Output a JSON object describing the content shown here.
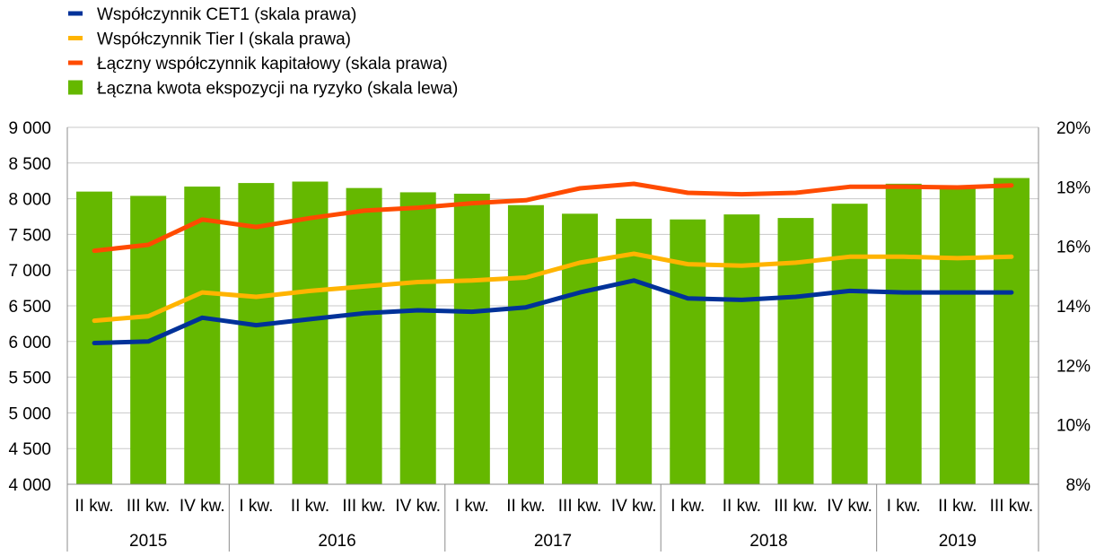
{
  "chart_data": {
    "type": "bar+line",
    "legend_placement": "top-left",
    "grid": true,
    "categories": [
      "II kw.",
      "III kw.",
      "IV kw.",
      "I kw.",
      "II kw.",
      "III kw.",
      "IV kw.",
      "I kw.",
      "II kw.",
      "III kw.",
      "IV kw.",
      "I kw.",
      "II kw.",
      "III kw.",
      "IV kw.",
      "I kw.",
      "II kw.",
      "III kw."
    ],
    "year_groups": [
      {
        "label": "2015",
        "count": 3
      },
      {
        "label": "2016",
        "count": 4
      },
      {
        "label": "2017",
        "count": 4
      },
      {
        "label": "2018",
        "count": 4
      },
      {
        "label": "2019",
        "count": 3
      }
    ],
    "y_left": {
      "min": 4000,
      "max": 9000,
      "ticks": [
        4000,
        4500,
        5000,
        5500,
        6000,
        6500,
        7000,
        7500,
        8000,
        8500,
        9000
      ],
      "tick_labels": [
        "4 000",
        "4 500",
        "5 000",
        "5 500",
        "6 000",
        "6 500",
        "7 000",
        "7 500",
        "8 000",
        "8 500",
        "9 000"
      ]
    },
    "y_right": {
      "min": 8,
      "max": 20,
      "ticks": [
        8,
        10,
        12,
        14,
        16,
        18,
        20
      ],
      "tick_labels": [
        "8%",
        "10%",
        "12%",
        "14%",
        "16%",
        "18%",
        "20%"
      ]
    },
    "bars": {
      "name": "Łączna kwota ekspozycji na ryzyko (skala lewa)",
      "color": "#65b800",
      "axis": "left",
      "values": [
        8100,
        8040,
        8170,
        8220,
        8240,
        8150,
        8090,
        8070,
        7910,
        7790,
        7720,
        7710,
        7780,
        7730,
        7930,
        8210,
        8160,
        8290
      ]
    },
    "lines": [
      {
        "name": "Łączny współczynnik kapitałowy (skala prawa)",
        "color": "#ff4b00",
        "axis": "right",
        "values": [
          15.85,
          16.05,
          16.9,
          16.65,
          16.95,
          17.2,
          17.3,
          17.45,
          17.55,
          17.95,
          18.1,
          17.8,
          17.75,
          17.8,
          18.0,
          18.0,
          17.98,
          18.05
        ]
      },
      {
        "name": "Współczynnik Tier I (skala prawa)",
        "color": "#ffb400",
        "axis": "right",
        "values": [
          13.5,
          13.65,
          14.45,
          14.3,
          14.5,
          14.65,
          14.8,
          14.85,
          14.95,
          15.45,
          15.75,
          15.4,
          15.35,
          15.45,
          15.65,
          15.65,
          15.6,
          15.65
        ]
      },
      {
        "name": "Współczynnik CET1 (skala prawa)",
        "color": "#003299",
        "axis": "right",
        "values": [
          12.75,
          12.8,
          13.6,
          13.35,
          13.55,
          13.75,
          13.85,
          13.8,
          13.95,
          14.45,
          14.85,
          14.25,
          14.2,
          14.3,
          14.5,
          14.45,
          14.45,
          14.45
        ]
      }
    ],
    "legend": [
      {
        "label": "Współczynnik CET1 (skala prawa)",
        "color": "#003299",
        "kind": "line"
      },
      {
        "label": "Współczynnik Tier I (skala prawa)",
        "color": "#ffb400",
        "kind": "line"
      },
      {
        "label": "Łączny współczynnik kapitałowy (skala prawa)",
        "color": "#ff4b00",
        "kind": "line"
      },
      {
        "label": "Łączna kwota ekspozycji na ryzyko (skala lewa)",
        "color": "#65b800",
        "kind": "bar"
      }
    ]
  }
}
